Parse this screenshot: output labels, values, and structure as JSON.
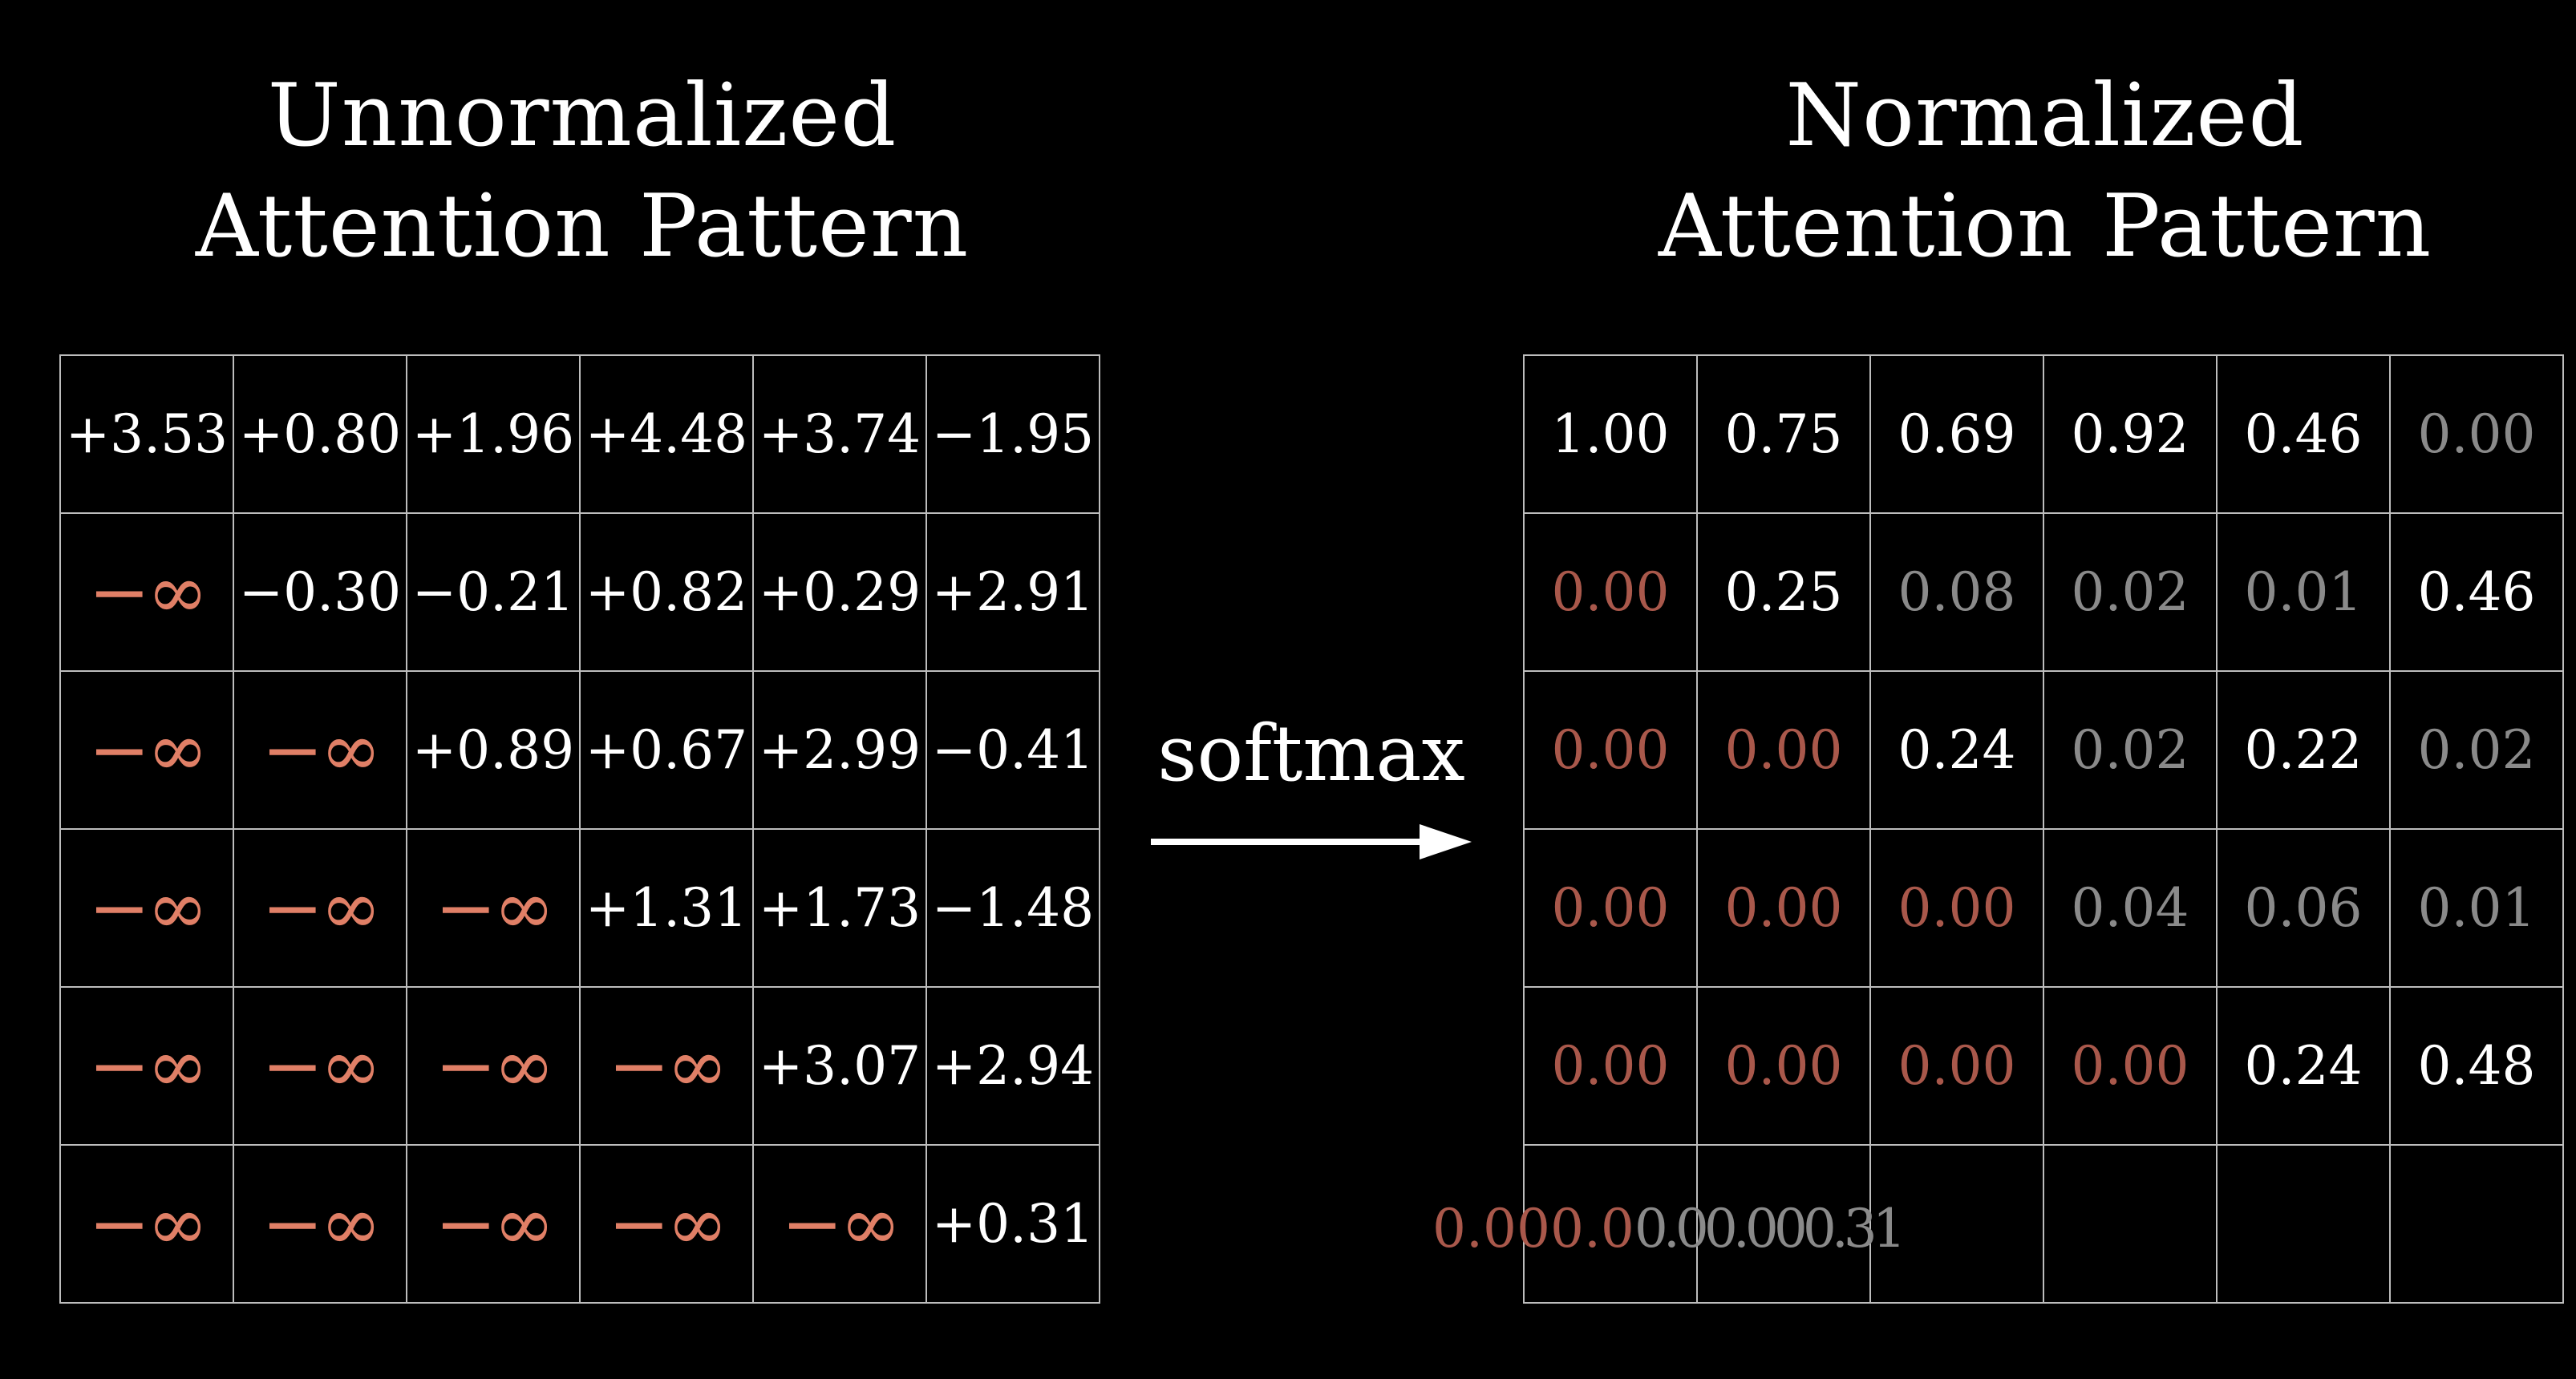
{
  "left_title": {
    "line1": "Unnormalized",
    "line2": "Attention Pattern"
  },
  "right_title": {
    "line1": "Normalized",
    "line2": "Attention Pattern"
  },
  "softmax_label": "softmax",
  "colors": {
    "background": "#000000",
    "text": "#ffffff",
    "infinity": "#e07f66",
    "masked_zero": "#a9584b",
    "dim_value": "#8a8a8a",
    "grid_line": "#bdbdbd"
  },
  "left_grid": [
    [
      "+3.53",
      "+0.80",
      "+1.96",
      "+4.48",
      "+3.74",
      "−1.95"
    ],
    [
      "−∞",
      "−0.30",
      "−0.21",
      "+0.82",
      "+0.29",
      "+2.91"
    ],
    [
      "−∞",
      "−∞",
      "+0.89",
      "+0.67",
      "+2.99",
      "−0.41"
    ],
    [
      "−∞",
      "−∞",
      "−∞",
      "+1.31",
      "+1.73",
      "−1.48"
    ],
    [
      "−∞",
      "−∞",
      "−∞",
      "−∞",
      "+3.07",
      "+2.94"
    ],
    [
      "−∞",
      "−∞",
      "−∞",
      "−∞",
      "−∞",
      "+0.31"
    ]
  ],
  "right_grid": [
    [
      {
        "v": "1.00",
        "s": "white"
      },
      {
        "v": "0.75",
        "s": "white"
      },
      {
        "v": "0.69",
        "s": "white"
      },
      {
        "v": "0.92",
        "s": "white"
      },
      {
        "v": "0.46",
        "s": "white"
      },
      {
        "v": "0.00",
        "s": "dim"
      }
    ],
    [
      {
        "v": "0.00",
        "s": "masked"
      },
      {
        "v": "0.25",
        "s": "white"
      },
      {
        "v": "0.08",
        "s": "dim"
      },
      {
        "v": "0.02",
        "s": "dim"
      },
      {
        "v": "0.01",
        "s": "dim"
      },
      {
        "v": "0.46",
        "s": "white"
      }
    ],
    [
      {
        "v": "0.00",
        "s": "masked"
      },
      {
        "v": "0.00",
        "s": "masked"
      },
      {
        "v": "0.24",
        "s": "white"
      },
      {
        "v": "0.02",
        "s": "dim"
      },
      {
        "v": "0.22",
        "s": "white"
      },
      {
        "v": "0.02",
        "s": "dim"
      }
    ],
    [
      {
        "v": "0.00",
        "s": "masked"
      },
      {
        "v": "0.00",
        "s": "masked"
      },
      {
        "v": "0.00",
        "s": "masked"
      },
      {
        "v": "0.04",
        "s": "dim"
      },
      {
        "v": "0.06",
        "s": "dim"
      },
      {
        "v": "0.01",
        "s": "dim"
      }
    ],
    [
      {
        "v": "0.00",
        "s": "masked"
      },
      {
        "v": "0.00",
        "s": "masked"
      },
      {
        "v": "0.00",
        "s": "masked"
      },
      {
        "v": "0.00",
        "s": "masked"
      },
      {
        "v": "0.24",
        "s": "white"
      },
      {
        "v": "0.48",
        "s": "white"
      }
    ],
    [
      {
        "v": "",
        "s": "white"
      },
      {
        "v": "",
        "s": "white"
      },
      {
        "v": "",
        "s": "white"
      },
      {
        "v": "",
        "s": "white"
      },
      {
        "v": "",
        "s": "white"
      },
      {
        "v": "",
        "s": "white"
      }
    ]
  ],
  "animating_row_text": {
    "masked_part": "0.000.0",
    "dim_part": "0.00.000.31"
  }
}
